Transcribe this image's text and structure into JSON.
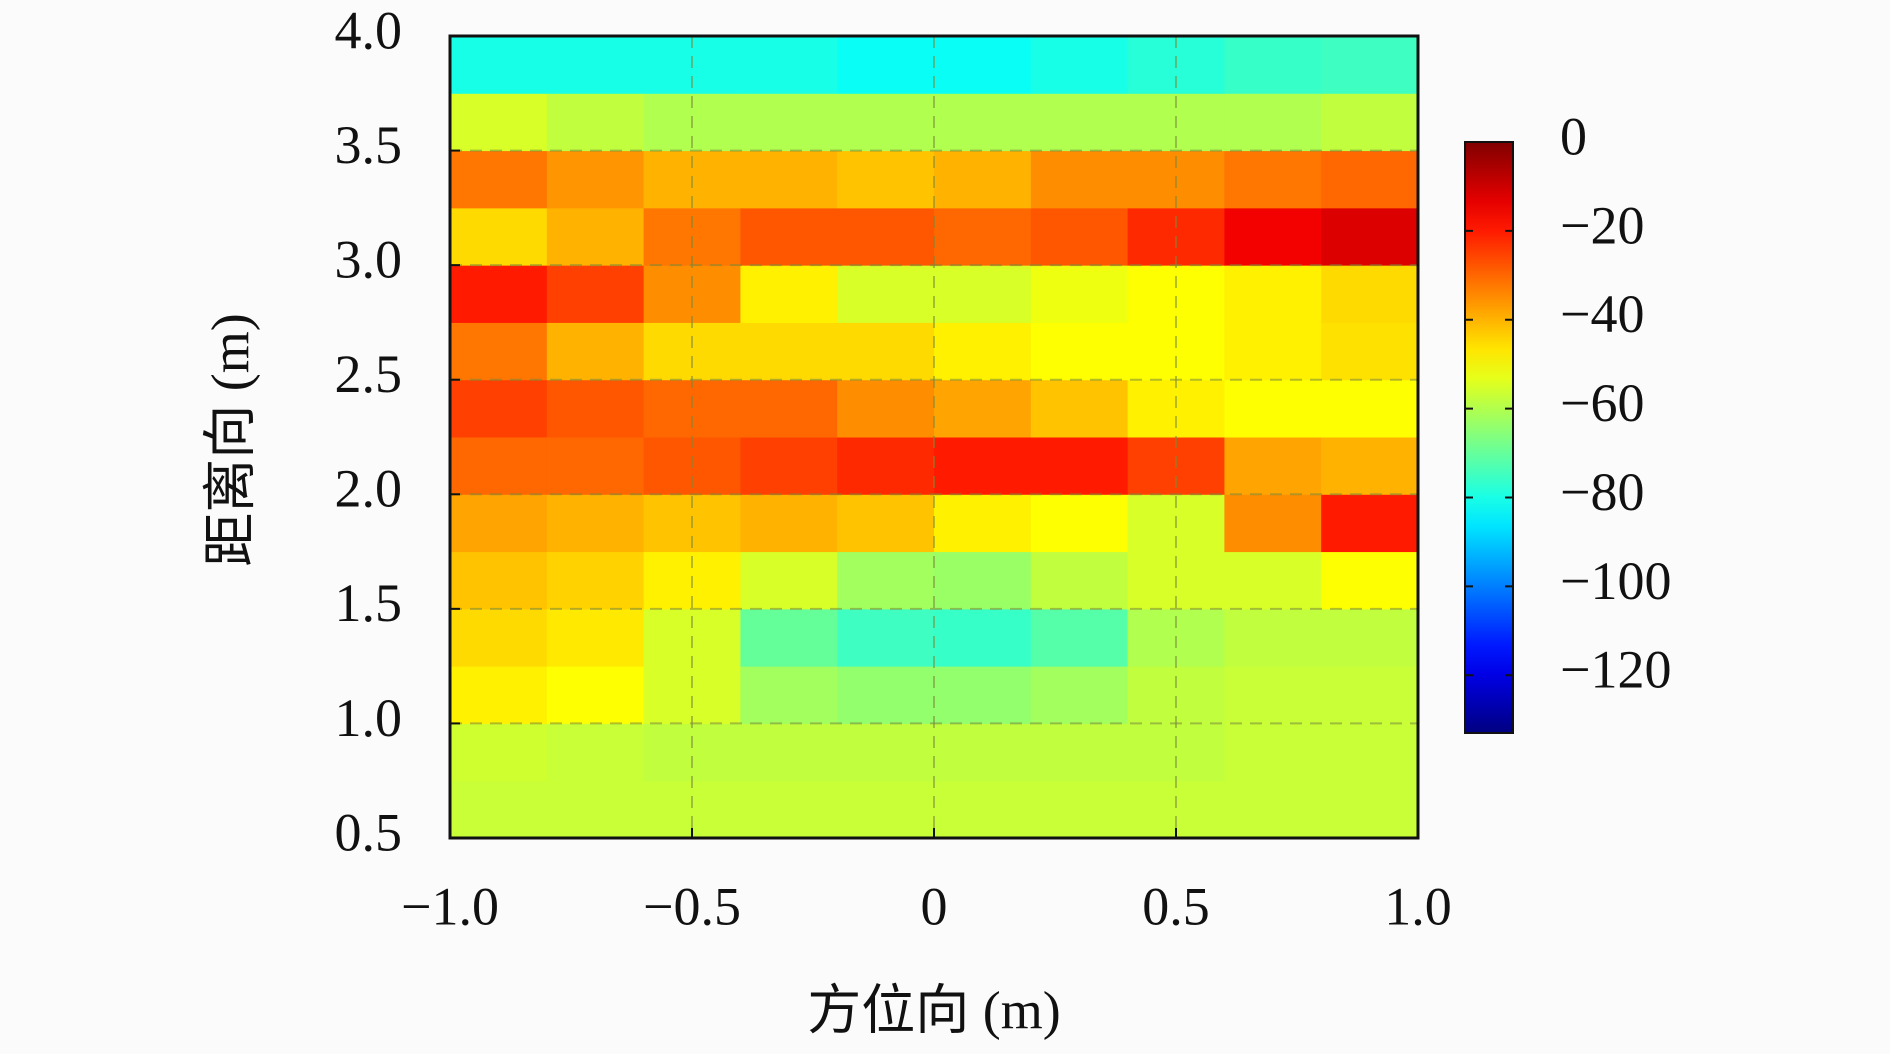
{
  "chart_data": {
    "type": "heatmap",
    "x_label": "方位向 (m)",
    "y_label": "距离向 (m)",
    "x": [
      -0.9,
      -0.7,
      -0.5,
      -0.3,
      -0.1,
      0.1,
      0.3,
      0.5,
      0.7,
      0.9
    ],
    "y": [
      0.625,
      0.875,
      1.125,
      1.375,
      1.625,
      1.875,
      2.125,
      2.375,
      2.625,
      2.875,
      3.125,
      3.375,
      3.625,
      3.875
    ],
    "values": [
      [
        -57,
        -57,
        -57,
        -57,
        -57,
        -57,
        -57,
        -57,
        -57,
        -57
      ],
      [
        -56,
        -57,
        -58,
        -58,
        -58,
        -58,
        -58,
        -58,
        -57,
        -57
      ],
      [
        -48,
        -50,
        -55,
        -62,
        -64,
        -64,
        -62,
        -58,
        -57,
        -57
      ],
      [
        -45,
        -47,
        -55,
        -70,
        -75,
        -76,
        -72,
        -60,
        -58,
        -58
      ],
      [
        -42,
        -44,
        -48,
        -55,
        -62,
        -63,
        -58,
        -55,
        -55,
        -50
      ],
      [
        -38,
        -40,
        -42,
        -40,
        -42,
        -48,
        -50,
        -55,
        -35,
        -20
      ],
      [
        -30,
        -30,
        -28,
        -25,
        -22,
        -20,
        -20,
        -25,
        -38,
        -40
      ],
      [
        -25,
        -28,
        -30,
        -30,
        -35,
        -38,
        -42,
        -48,
        -50,
        -50
      ],
      [
        -32,
        -40,
        -45,
        -45,
        -45,
        -48,
        -50,
        -50,
        -48,
        -46
      ],
      [
        -20,
        -25,
        -35,
        -48,
        -55,
        -55,
        -52,
        -50,
        -48,
        -45
      ],
      [
        -45,
        -40,
        -32,
        -28,
        -28,
        -30,
        -28,
        -22,
        -15,
        -12
      ],
      [
        -32,
        -36,
        -40,
        -40,
        -42,
        -40,
        -35,
        -35,
        -32,
        -30
      ],
      [
        -55,
        -58,
        -60,
        -60,
        -60,
        -60,
        -60,
        -60,
        -60,
        -58
      ],
      [
        -80,
        -80,
        -80,
        -80,
        -82,
        -82,
        -80,
        -78,
        -76,
        -75
      ]
    ],
    "xlim": [
      -1,
      1
    ],
    "ylim": [
      0.5,
      4
    ],
    "xticks": [
      {
        "value": -1,
        "label": "−1.0"
      },
      {
        "value": -0.5,
        "label": "−0.5"
      },
      0,
      0.5,
      {
        "value": 1,
        "label": "1.0"
      }
    ],
    "yticks": [
      0.5,
      {
        "value": 1,
        "label": "1.0"
      },
      1.5,
      {
        "value": 2,
        "label": "2.0"
      },
      2.5,
      {
        "value": 3,
        "label": "3.0"
      },
      3.5,
      {
        "value": 4,
        "label": "4.0"
      }
    ],
    "clim": [
      -133,
      0
    ],
    "cticks": [
      0,
      {
        "value": -20,
        "label": "−20"
      },
      {
        "value": -40,
        "label": "−40"
      },
      {
        "value": -60,
        "label": "−60"
      },
      {
        "value": -80,
        "label": "−80"
      },
      {
        "value": -100,
        "label": "−100"
      },
      {
        "value": -120,
        "label": "−120"
      }
    ],
    "colormap": "jet",
    "grid": true
  }
}
